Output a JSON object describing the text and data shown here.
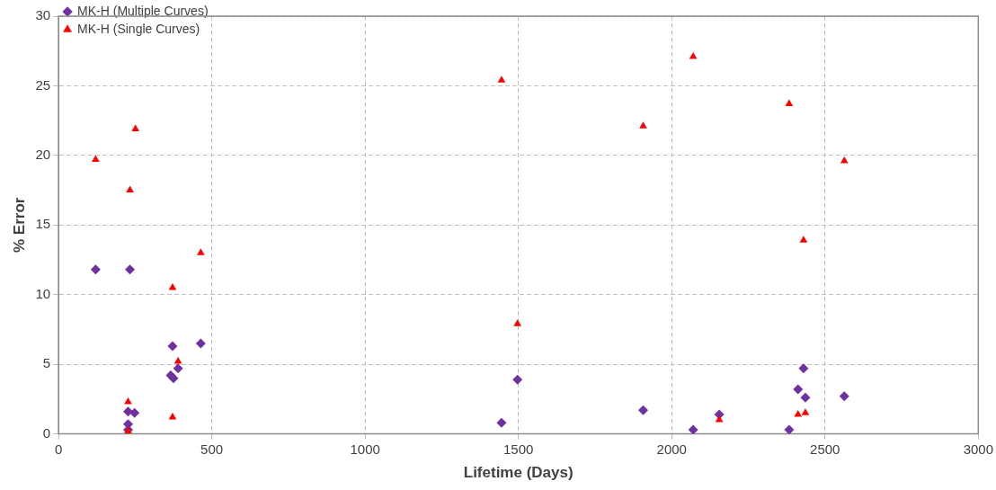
{
  "chart_data": {
    "type": "scatter",
    "xlabel": "Lifetime (Days)",
    "ylabel": "% Error",
    "xlim": [
      0,
      3000
    ],
    "xticks": [
      0,
      500,
      1000,
      1500,
      2000,
      2500,
      3000
    ],
    "ylim": [
      0,
      30
    ],
    "yticks": [
      0,
      5,
      10,
      15,
      20,
      25,
      30
    ],
    "grid": true,
    "legend": "top left",
    "series": [
      {
        "name": "MK-H (Multiple Curves)",
        "color": "#7030a0",
        "marker": "diamond",
        "x": [
          121,
          233,
          372,
          464,
          366,
          375,
          390,
          227,
          248,
          227,
          227,
          1445,
          1497,
          1907,
          2070,
          2155,
          2383,
          2412,
          2430,
          2436,
          2563
        ],
        "values": [
          11.8,
          11.8,
          6.3,
          6.5,
          4.2,
          4.0,
          4.7,
          1.6,
          1.5,
          0.7,
          0.3,
          0.8,
          3.9,
          1.7,
          0.3,
          1.4,
          0.3,
          3.2,
          4.7,
          2.6,
          2.7
        ]
      },
      {
        "name": "MK-H (Single Curves)",
        "color": "#ff0000",
        "marker": "triangle",
        "x": [
          121,
          251,
          233,
          464,
          372,
          390,
          227,
          227,
          372,
          1445,
          1497,
          1907,
          2070,
          2155,
          2383,
          2412,
          2436,
          2430,
          2563
        ],
        "values": [
          19.7,
          21.9,
          17.5,
          13.0,
          10.5,
          5.2,
          2.3,
          0.2,
          1.2,
          25.4,
          7.9,
          22.1,
          27.1,
          1.0,
          23.7,
          1.4,
          1.5,
          13.9,
          19.6
        ]
      }
    ]
  }
}
